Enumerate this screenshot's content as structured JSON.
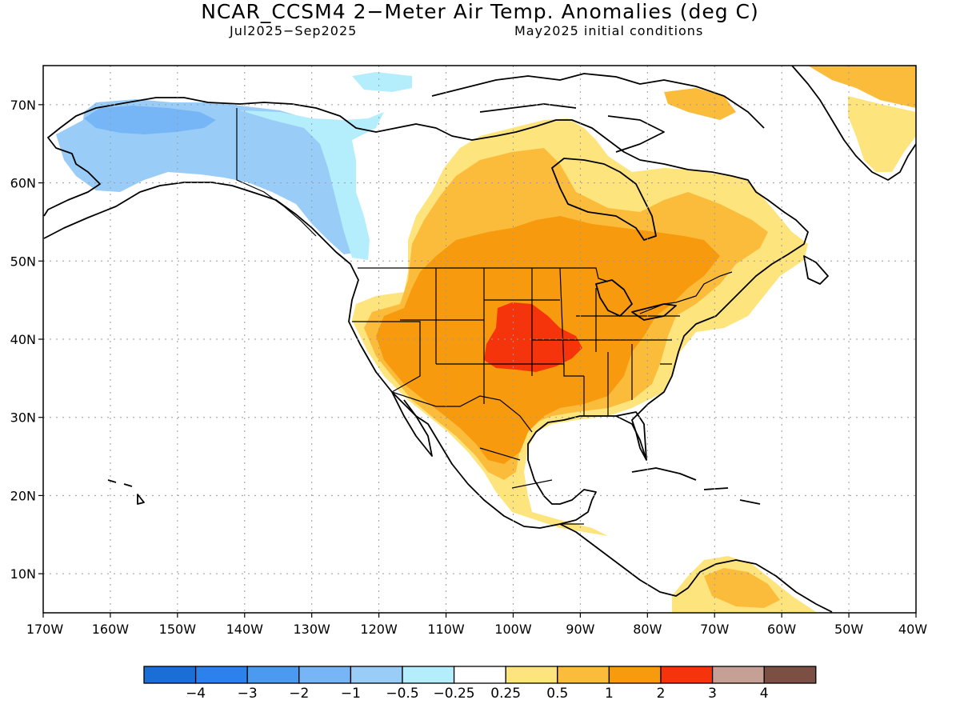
{
  "title": "NCAR_CCSM4 2−Meter Air Temp. Anomalies (deg C)",
  "subtitle_left": "Jul2025−Sep2025",
  "subtitle_right": "May2025 initial conditions",
  "map": {
    "lon_range": [
      -170,
      -40
    ],
    "lat_range": [
      5,
      75
    ],
    "lat_labels": [
      "10N",
      "20N",
      "30N",
      "40N",
      "50N",
      "60N",
      "70N"
    ],
    "lat_values": [
      10,
      20,
      30,
      40,
      50,
      60,
      70
    ],
    "lon_labels": [
      "170W",
      "160W",
      "150W",
      "140W",
      "130W",
      "120W",
      "110W",
      "100W",
      "90W",
      "80W",
      "70W",
      "60W",
      "50W",
      "40W"
    ],
    "lon_values": [
      -170,
      -160,
      -150,
      -140,
      -130,
      -120,
      -110,
      -100,
      -90,
      -80,
      -70,
      -60,
      -50,
      -40
    ],
    "grid": "dotted"
  },
  "legend": {
    "colors": [
      "#1a6fd6",
      "#2c82ec",
      "#4a9af2",
      "#77b6f6",
      "#99cdf8",
      "#b4eefc",
      "#ffffff",
      "#fde47c",
      "#fbbc3c",
      "#f79a0e",
      "#f5340c",
      "#c7a095",
      "#7b4f43"
    ],
    "labels": [
      "−4",
      "−3",
      "−2",
      "−1",
      "−0.5",
      "−0.25",
      "0.25",
      "0.5",
      "1",
      "2",
      "3",
      "4"
    ]
  },
  "palette": {
    "cold2": "#77b6f6",
    "cold1": "#99cdf8",
    "cold05": "#b4eefc",
    "warm025": "#fde47c",
    "warm05": "#fbbc3c",
    "warm1": "#f79a0e",
    "warm2": "#f5340c"
  }
}
